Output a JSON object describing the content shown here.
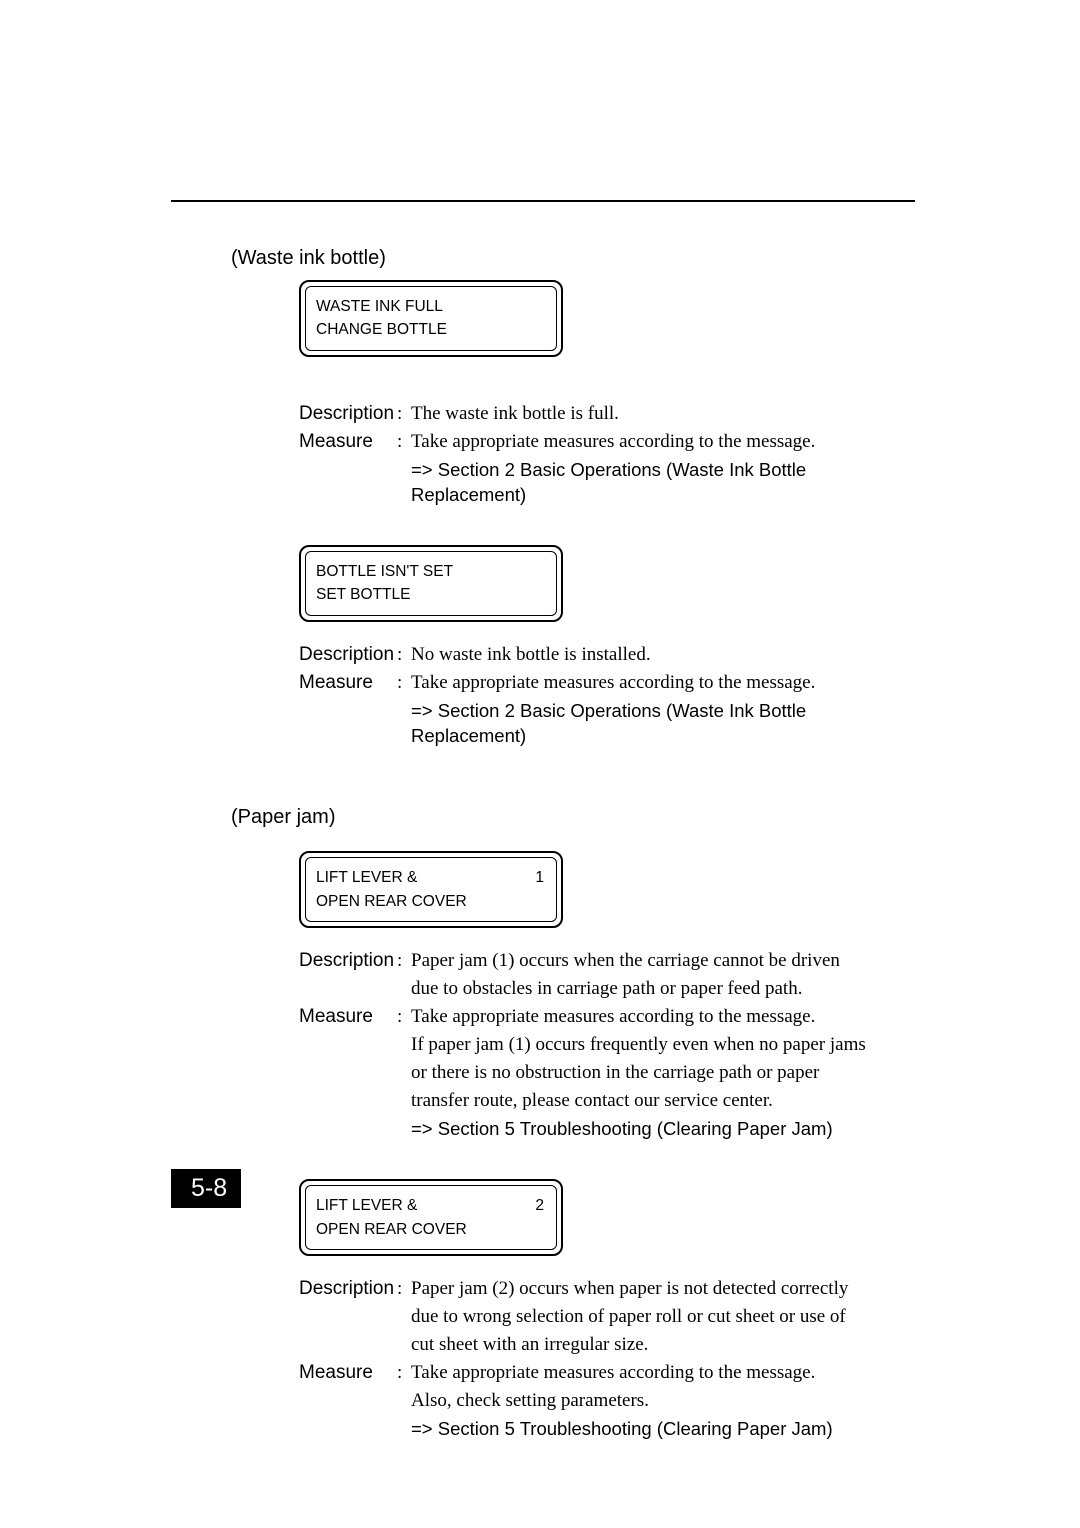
{
  "page_number": "5-8",
  "section1": {
    "heading": "(Waste ink bottle)"
  },
  "item1": {
    "lcd_line1": "WASTE INK FULL",
    "lcd_line2": "CHANGE BOTTLE",
    "desc_label": "Description",
    "desc_text": "The waste ink bottle is full.",
    "meas_label": "Measure",
    "meas_text": "Take appropriate measures according to the message.",
    "ref": "=> Section 2 Basic Operations (Waste Ink Bottle Replacement)"
  },
  "item2": {
    "lcd_line1": "BOTTLE ISN'T SET",
    "lcd_line2": "SET BOTTLE",
    "desc_label": "Description",
    "desc_text": "No waste ink bottle is installed.",
    "meas_label": "Measure",
    "meas_text": "Take appropriate measures according to the message.",
    "ref": "=> Section 2 Basic Operations (Waste Ink Bottle Replacement)"
  },
  "section2": {
    "heading": "(Paper jam)"
  },
  "item3": {
    "lcd_line1": "LIFT LEVER &",
    "lcd_line2": "OPEN REAR COVER",
    "lcd_num": "1",
    "desc_label": "Description",
    "desc_text1": "Paper jam (1) occurs when the carriage cannot be driven",
    "desc_text2": "due to obstacles in carriage path or paper feed path.",
    "meas_label": "Measure",
    "meas_text1": "Take appropriate measures according to the message.",
    "meas_text2": "If paper jam (1) occurs frequently even when no paper jams",
    "meas_text3": "or there is no obstruction in the carriage path or paper",
    "meas_text4": "transfer route, please contact our service center.",
    "ref": "=> Section 5 Troubleshooting (Clearing Paper Jam)"
  },
  "item4": {
    "lcd_line1": "LIFT LEVER &",
    "lcd_line2": "OPEN REAR COVER",
    "lcd_num": "2",
    "desc_label": "Description",
    "desc_text1": "Paper jam (2) occurs when paper is not detected correctly",
    "desc_text2": "due to wrong selection of paper roll or cut sheet or use of",
    "desc_text3": "cut sheet with an irregular size.",
    "meas_label": "Measure",
    "meas_text1": "Take appropriate measures according to the message.",
    "meas_text2": "Also, check setting parameters.",
    "ref": "=> Section 5 Troubleshooting (Clearing Paper Jam)"
  }
}
